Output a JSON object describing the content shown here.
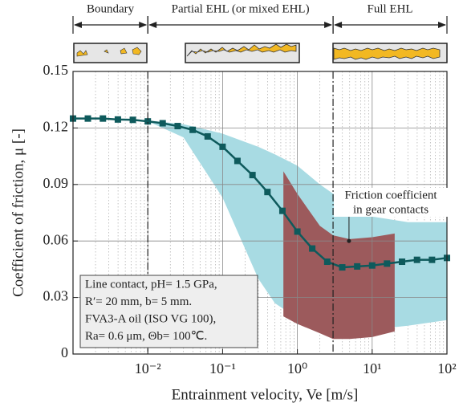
{
  "chart_data": {
    "type": "line",
    "xlabel": "Entrainment velocity, Ve [m/s]",
    "ylabel": "Coefficient of friction, μ [-]",
    "log_x": true,
    "grid": true,
    "xlim": [
      0.001,
      100
    ],
    "ylim": [
      0,
      0.15
    ],
    "xticks": [
      {
        "value": 0.01,
        "label": "10⁻²"
      },
      {
        "value": 0.1,
        "label": "10⁻¹"
      },
      {
        "value": 1,
        "label": "10⁰"
      },
      {
        "value": 10,
        "label": "10¹"
      },
      {
        "value": 100,
        "label": "10²"
      }
    ],
    "yticks": [
      0,
      0.03,
      0.06,
      0.09,
      0.12,
      0.15
    ],
    "x": [
      0.001,
      0.00158,
      0.00251,
      0.00398,
      0.00631,
      0.01,
      0.0158,
      0.0251,
      0.0398,
      0.0631,
      0.1,
      0.158,
      0.251,
      0.398,
      0.631,
      1,
      1.58,
      2.51,
      3.98,
      6.31,
      10,
      15.8,
      25.1,
      39.8,
      63.1,
      100
    ],
    "series": [
      {
        "color": "#0e5a5c",
        "values": [
          0.125,
          0.125,
          0.125,
          0.1245,
          0.1243,
          0.1235,
          0.1225,
          0.121,
          0.119,
          0.1155,
          0.11,
          0.1025,
          0.095,
          0.086,
          0.076,
          0.065,
          0.056,
          0.049,
          0.046,
          0.0465,
          0.047,
          0.048,
          0.049,
          0.05,
          0.05,
          0.051
        ]
      }
    ],
    "bands": [
      {
        "color": "#a8dbe3",
        "x": [
          0.01,
          0.03,
          0.1,
          0.3,
          0.5,
          1,
          2,
          5,
          10,
          30,
          100
        ],
        "upper": [
          0.124,
          0.122,
          0.117,
          0.11,
          0.106,
          0.1,
          0.09,
          0.079,
          0.073,
          0.07,
          0.07
        ],
        "lower": [
          0.1235,
          0.115,
          0.083,
          0.04,
          0.027,
          0.019,
          0.013,
          0.012,
          0.013,
          0.015,
          0.018
        ]
      },
      {
        "color": "#9c5a5c",
        "x": [
          0.65,
          1,
          2,
          3,
          5,
          10,
          20
        ],
        "upper": [
          0.097,
          0.085,
          0.068,
          0.063,
          0.061,
          0.062,
          0.064
        ],
        "lower": [
          0.02,
          0.016,
          0.011,
          0.008,
          0.008,
          0.009,
          0.012
        ]
      }
    ],
    "regimes": [
      {
        "label": "Boundary",
        "from": 0.001,
        "to": 0.01
      },
      {
        "label": "Partial EHL (or mixed EHL)",
        "from": 0.01,
        "to": 3
      },
      {
        "label": "Full EHL",
        "from": 3,
        "to": 100
      }
    ],
    "annotation": {
      "lines": [
        "Friction coefficient",
        "in gear contacts"
      ],
      "x": 4.9,
      "y": 0.06
    },
    "info_box": [
      "Line contact, pH= 1.5 GPa,",
      "R′= 20 mm, b= 5 mm.",
      "FVA3-A oil (ISO VG 100),",
      "Ra= 0.6 μm, Θb= 100℃."
    ]
  }
}
